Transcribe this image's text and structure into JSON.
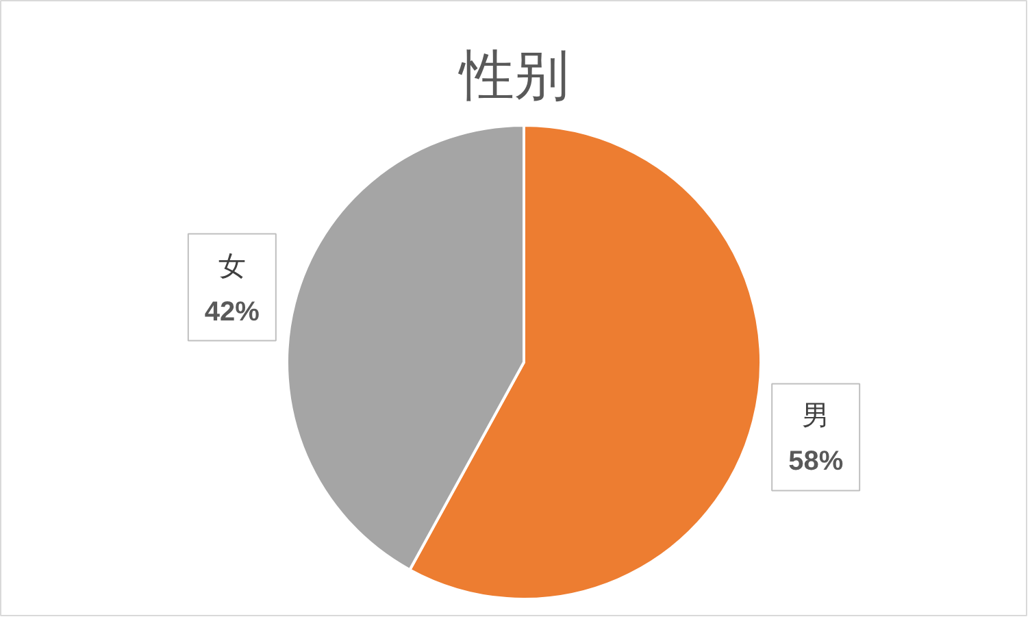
{
  "chart_data": {
    "type": "pie",
    "title": "性别",
    "categories": [
      "男",
      "女"
    ],
    "values": [
      58,
      42
    ],
    "colors": [
      "#ed7d31",
      "#a5a5a5"
    ],
    "value_labels": [
      "58%",
      "42%"
    ]
  }
}
